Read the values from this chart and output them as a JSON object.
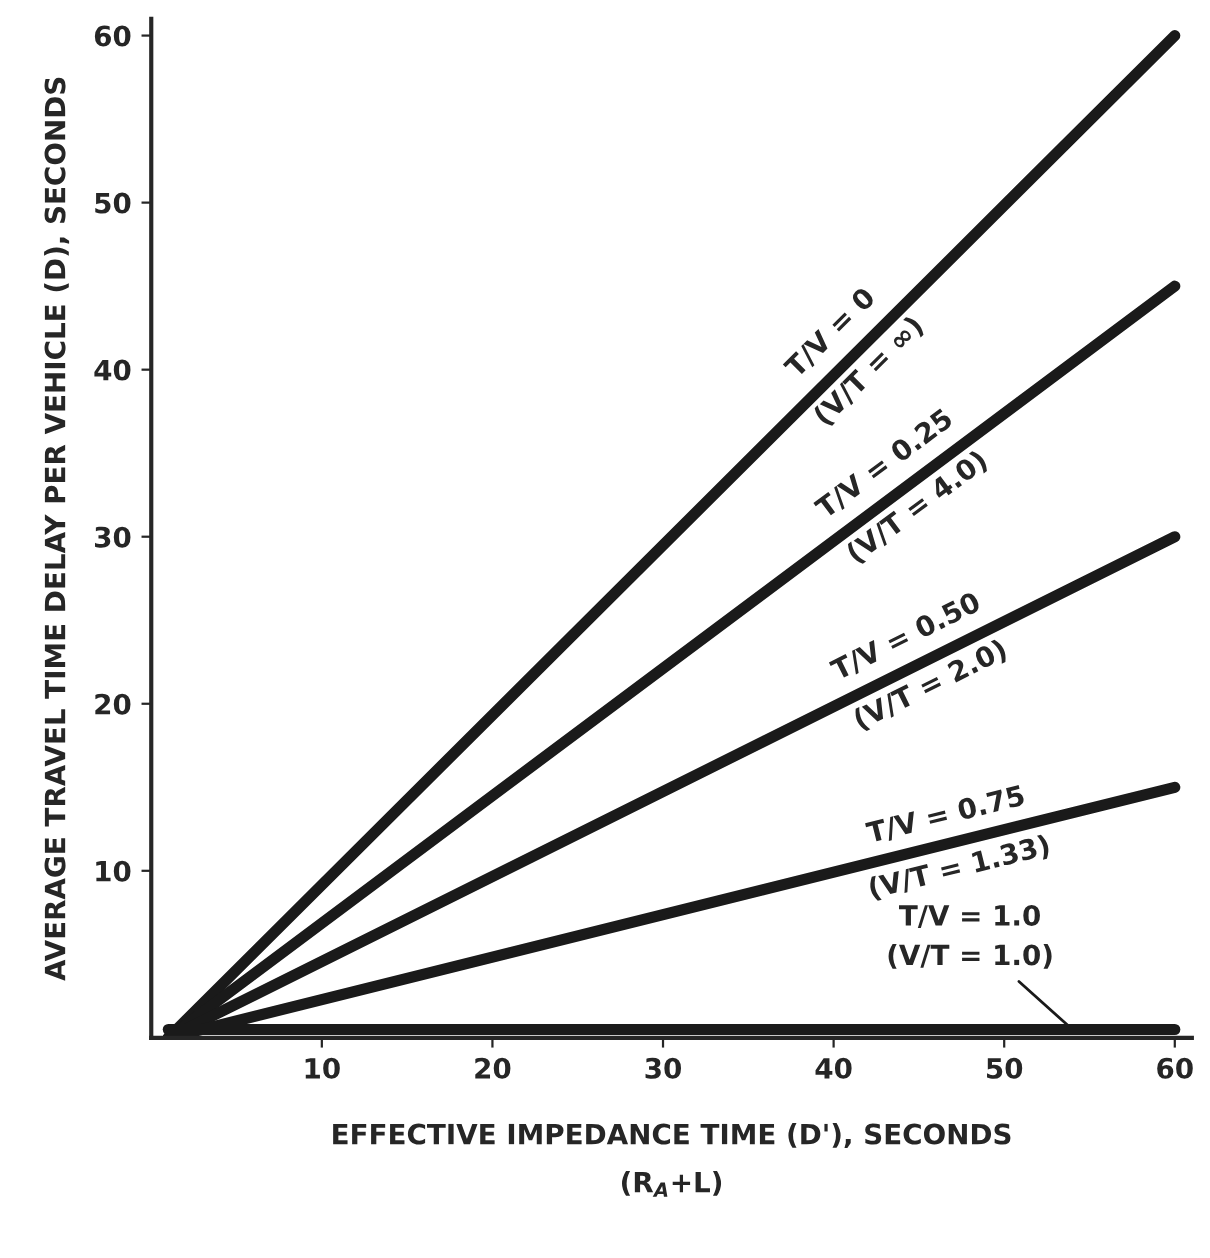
{
  "chart_data": {
    "type": "line",
    "xlabel": "EFFECTIVE IMPEDANCE TIME (D'), SECONDS\n(R$_{A}$+L)",
    "ylabel": "AVERAGE TRAVEL TIME DELAY PER VEHICLE (D), SECONDS",
    "x": [
      1,
      60
    ],
    "series": [
      {
        "color": "#1a1a1a",
        "values": [
          0,
          60
        ]
      },
      {
        "color": "#1a1a1a",
        "values": [
          0,
          45
        ]
      },
      {
        "color": "#1a1a1a",
        "values": [
          0,
          30
        ]
      },
      {
        "color": "#1a1a1a",
        "values": [
          0,
          15
        ]
      },
      {
        "color": "#1a1a1a",
        "values": [
          0.5,
          0.5
        ]
      }
    ],
    "annotations": [
      {
        "text": "T/V = 0\n(V/T = ∞)",
        "x": 41,
        "y": 41
      },
      {
        "text": "T/V = 0.25\n(V/T = 4.0)",
        "x": 44,
        "y": 33
      },
      {
        "text": "T/V = 0.50\n(V/T = 2.0)",
        "x": 45,
        "y": 22.5
      },
      {
        "text": "T/V = 0.75\n(V/T = 1.33)",
        "x": 47,
        "y": 11.7
      },
      {
        "text": "T/V = 1.0\n(V/T = 1.0)",
        "x": 54,
        "y": 0.5
      }
    ],
    "xlim": [
      0,
      61
    ],
    "ylim": [
      0,
      61
    ],
    "xticks": [
      10,
      20,
      30,
      40,
      50,
      60
    ],
    "yticks": [
      10,
      20,
      30,
      40,
      50,
      60
    ],
    "grid": false,
    "legend": false,
    "marker": "none",
    "line_style": "solid"
  }
}
